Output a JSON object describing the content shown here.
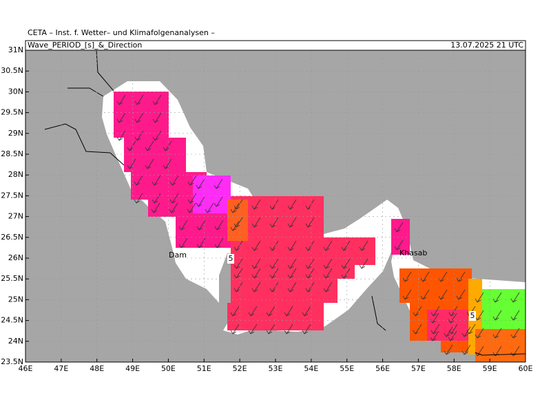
{
  "header": {
    "institute": "CETA – Inst. f. Wetter– und Klimafolgenanalysen –",
    "title": "Wave_PERIOD_[s]_&_Direction",
    "time": "13.07.2025 21 UTC"
  },
  "map": {
    "xlim": [
      46,
      60
    ],
    "ylim": [
      23.5,
      31
    ],
    "xticks": [
      {
        "value": 46,
        "label": "46E"
      },
      {
        "value": 47,
        "label": "47E"
      },
      {
        "value": 48,
        "label": "48E"
      },
      {
        "value": 49,
        "label": "49E"
      },
      {
        "value": 50,
        "label": "50E"
      },
      {
        "value": 51,
        "label": "51E"
      },
      {
        "value": 52,
        "label": "52E"
      },
      {
        "value": 53,
        "label": "53E"
      },
      {
        "value": 54,
        "label": "54E"
      },
      {
        "value": 55,
        "label": "55E"
      },
      {
        "value": 56,
        "label": "56E"
      },
      {
        "value": 57,
        "label": "57E"
      },
      {
        "value": 58,
        "label": "58E"
      },
      {
        "value": 59,
        "label": "59E"
      },
      {
        "value": 60,
        "label": "60E"
      }
    ],
    "yticks": [
      {
        "value": 23.5,
        "label": "23.5N"
      },
      {
        "value": 24,
        "label": "24N"
      },
      {
        "value": 24.5,
        "label": "24.5N"
      },
      {
        "value": 25,
        "label": "25N"
      },
      {
        "value": 25.5,
        "label": "25.5N"
      },
      {
        "value": 26,
        "label": "26N"
      },
      {
        "value": 26.5,
        "label": "26.5N"
      },
      {
        "value": 27,
        "label": "27N"
      },
      {
        "value": 27.5,
        "label": "27.5N"
      },
      {
        "value": 28,
        "label": "28N"
      },
      {
        "value": 28.5,
        "label": "28.5N"
      },
      {
        "value": 29,
        "label": "29N"
      },
      {
        "value": 29.5,
        "label": "29.5N"
      },
      {
        "value": 30,
        "label": "30N"
      },
      {
        "value": 30.5,
        "label": "30.5N"
      },
      {
        "value": 31,
        "label": "31N"
      }
    ],
    "contour_labels": [
      "5",
      "5"
    ],
    "places": [
      "Dam",
      "Khasab"
    ]
  }
}
